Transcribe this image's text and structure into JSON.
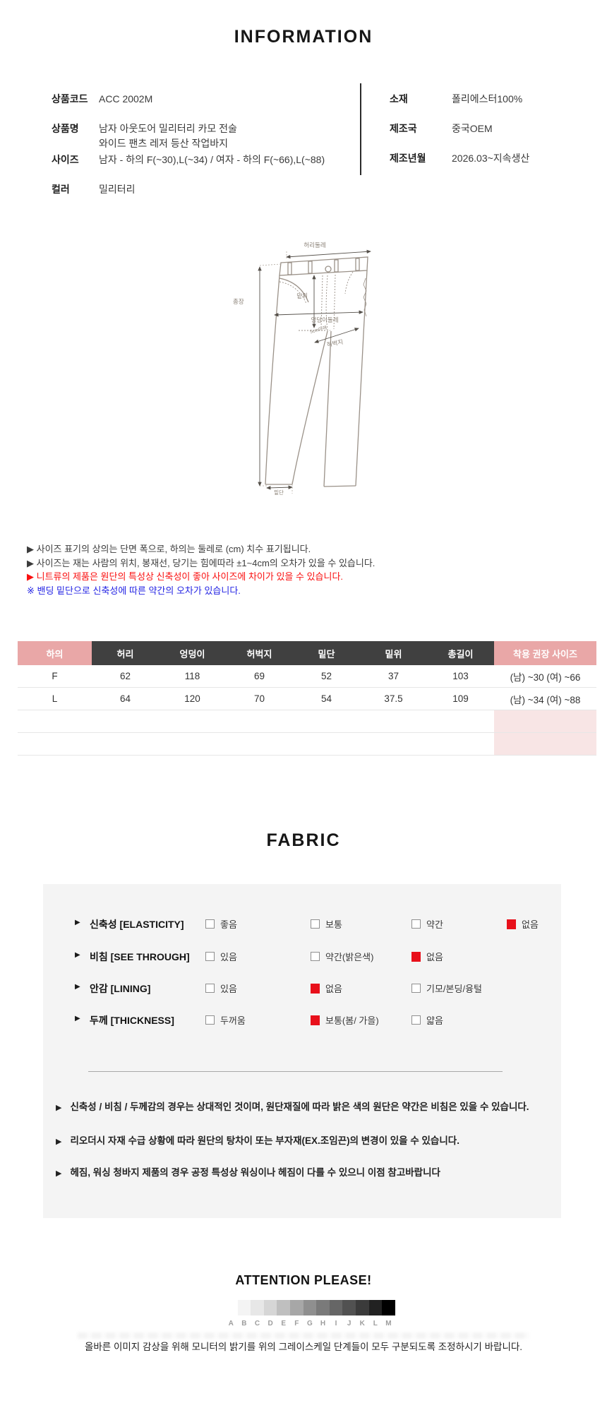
{
  "info": {
    "title": "INFORMATION",
    "left_rows": [
      {
        "label": "상품코드",
        "lines": [
          "ACC 2002M"
        ]
      },
      {
        "label": "상품명",
        "lines": [
          "남자 아웃도어 밀리터리 카모 전술",
          "와이드 팬츠 레저 등산 작업바지"
        ]
      },
      {
        "label": "사이즈",
        "lines": [
          "남자 -  하의 F(~30),L(~34) / 여자 - 하의 F(~66),L(~88)"
        ]
      },
      {
        "label": "컬러",
        "lines": [
          "밀리터리"
        ]
      }
    ],
    "right_rows": [
      {
        "label": "소재",
        "lines": [
          "폴리에스터100%"
        ]
      },
      {
        "label": "제조국",
        "lines": [
          "중국OEM"
        ]
      },
      {
        "label": "제조년월",
        "lines": [
          "2026.03~지속생산"
        ]
      }
    ]
  },
  "diagram": {
    "labels": {
      "waist": "허리둘레",
      "length": "총장",
      "rise": "밑위",
      "hip": "엉덩이둘레",
      "hip_note": "5cm아래",
      "thigh": "허벅지",
      "hem": "밑단"
    }
  },
  "size_notes": [
    {
      "text": "▶ 사이즈 표기의 상의는 단면 폭으로, 하의는 둘레로 (cm) 치수 표기됩니다.",
      "color": "dark"
    },
    {
      "text": "▶ 사이즈는 재는 사람의 위치, 봉재선, 당기는 힘에따라 ±1~4cm의 오차가 있을 수 있습니다.",
      "color": "dark"
    },
    {
      "text": "▶ 니트류의 제품은 원단의 특성상 신축성이 좋아 사이즈에 차이가 있을 수 있습니다.",
      "color": "red"
    },
    {
      "text": "※ 밴딩 밑단으로 신축성에 따른 약간의 오차가 있습니다.",
      "color": "blue"
    }
  ],
  "size_table": {
    "col_headers": [
      "하의",
      "허리",
      "엉덩이",
      "허벅지",
      "밑단",
      "밑위",
      "총길이",
      "착용 권장 사이즈"
    ],
    "rows": [
      {
        "size": "F",
        "values": [
          "62",
          "118",
          "69",
          "52",
          "37",
          "103"
        ],
        "fit": "(남) ~30 (여) ~66"
      },
      {
        "size": "L",
        "values": [
          "64",
          "120",
          "70",
          "54",
          "37.5",
          "109"
        ],
        "fit": "(남) ~34 (여) ~88"
      }
    ],
    "empty_row_count": 2
  },
  "fabric": {
    "title": "FABRIC",
    "rows": [
      {
        "label": "신축성 [ELASTICITY]",
        "options": [
          {
            "text": "좋음",
            "checked": false
          },
          {
            "text": "보통",
            "checked": false
          },
          {
            "text": "약간",
            "checked": false
          },
          {
            "text": "없음",
            "checked": true
          }
        ]
      },
      {
        "label": "비침 [SEE THROUGH]",
        "options": [
          {
            "text": "있음",
            "checked": false
          },
          {
            "text": "약간(밝은색)",
            "checked": false
          },
          {
            "text": "없음",
            "checked": true
          }
        ]
      },
      {
        "label": "안감 [LINING]",
        "options": [
          {
            "text": "있음",
            "checked": false
          },
          {
            "text": "없음",
            "checked": true
          },
          {
            "text": "기모/본딩/융털",
            "checked": false
          }
        ]
      },
      {
        "label": "두께 [THICKNESS]",
        "options": [
          {
            "text": "두꺼움",
            "checked": false
          },
          {
            "text": "보통(봄/ 가을)",
            "checked": true
          },
          {
            "text": "얇음",
            "checked": false
          }
        ]
      }
    ],
    "notes": [
      "신축성 / 비침 / 두께감의 경우는 상대적인 것이며, 원단재질에 따라 밝은 색의 원단은 약간은 비침은 있을 수 있습니다.",
      "리오더시 자재 수급 상황에 따라 원단의 탕차이 또는 부자재(EX.조임끈)의 변경이 있을 수 있습니다.",
      "헤짐, 워싱 청바지 제품의 경우 공정 특성상 워싱이나 헤짐이 다를 수 있으니 이점 참고바랍니다"
    ],
    "note_arrow": "▶"
  },
  "attention": {
    "title": "ATTENTION PLEASE!",
    "letters": [
      "A",
      "B",
      "C",
      "D",
      "E",
      "F",
      "G",
      "H",
      "I",
      "J",
      "K",
      "L",
      "M"
    ],
    "swatches": [
      "#ffffff",
      "#f4f4f4",
      "#e7e7e7",
      "#d6d6d6",
      "#bfbfbf",
      "#a7a7a7",
      "#8f8f8f",
      "#7a7a7a",
      "#666666",
      "#515151",
      "#3b3b3b",
      "#222222",
      "#000000"
    ],
    "note": "올바른 이미지 감상을 위해 모니터의 밝기를 위의 그레이스케일 단계들이 모두 구분되도록 조정하시기 바랍니다."
  },
  "colors": {
    "checked_box_red": "#e8101b",
    "note_red": "#fa0f0f",
    "note_blue": "#2424e4",
    "table_header_dark": "#404040",
    "table_header_pink": "#e9a7a7",
    "table_cell_pink": "#f8e5e5",
    "fabric_box_bg": "#f4f4f4"
  }
}
